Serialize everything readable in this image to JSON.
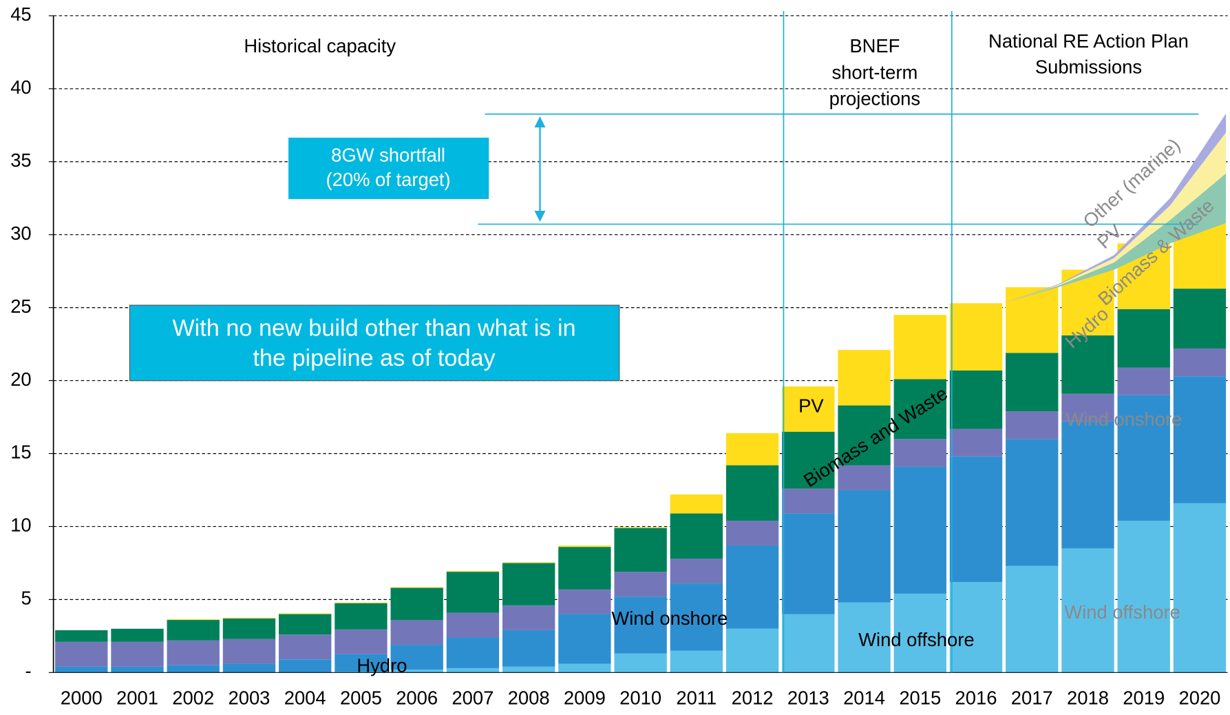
{
  "chart_data": {
    "type": "bar",
    "stacked": true,
    "categories": [
      "2000",
      "2001",
      "2002",
      "2003",
      "2004",
      "2005",
      "2006",
      "2007",
      "2008",
      "2009",
      "2010",
      "2011",
      "2012",
      "2013",
      "2014",
      "2015",
      "2016",
      "2017",
      "2018",
      "2019",
      "2020"
    ],
    "series": [
      {
        "name": "Wind offshore",
        "color": "#5bc0e8",
        "values": [
          0,
          0,
          0,
          0,
          0,
          0.05,
          0.2,
          0.3,
          0.4,
          0.6,
          1.3,
          1.5,
          3.0,
          4.0,
          4.8,
          5.4,
          6.2,
          7.3,
          8.5,
          10.4,
          11.6
        ]
      },
      {
        "name": "Wind onshore",
        "color": "#2e8fd0",
        "values": [
          0.4,
          0.4,
          0.5,
          0.6,
          0.9,
          1.2,
          1.7,
          2.1,
          2.5,
          3.4,
          3.9,
          4.6,
          5.7,
          6.9,
          7.7,
          8.7,
          8.6,
          8.7,
          8.7,
          8.6,
          8.7
        ]
      },
      {
        "name": "Hydro",
        "color": "#7377ba",
        "values": [
          1.7,
          1.7,
          1.7,
          1.7,
          1.7,
          1.7,
          1.7,
          1.7,
          1.7,
          1.7,
          1.7,
          1.7,
          1.7,
          1.7,
          1.7,
          1.9,
          1.9,
          1.9,
          1.9,
          1.9,
          1.9
        ]
      },
      {
        "name": "Biomass and Waste",
        "color": "#00805a",
        "values": [
          0.8,
          0.9,
          1.4,
          1.4,
          1.4,
          1.8,
          2.2,
          2.8,
          2.9,
          2.9,
          3.0,
          3.1,
          3.8,
          3.9,
          4.1,
          4.1,
          4.0,
          4.0,
          4.0,
          4.0,
          4.1
        ]
      },
      {
        "name": "PV",
        "color": "#ffdd1a",
        "values": [
          0,
          0,
          0.05,
          0.05,
          0.05,
          0.05,
          0.05,
          0.05,
          0.05,
          0.1,
          0.05,
          1.3,
          2.2,
          3.1,
          3.8,
          4.4,
          4.6,
          4.5,
          4.5,
          4.5,
          4.5
        ]
      }
    ],
    "projection": {
      "series": [
        {
          "name": "Biomass & Waste",
          "color": "#8cc9b0",
          "values": [
            null,
            null,
            null,
            null,
            null,
            null,
            null,
            null,
            null,
            null,
            null,
            null,
            null,
            null,
            null,
            null,
            0,
            0.1,
            0.5,
            1.6,
            3.4
          ]
        },
        {
          "name": "PV",
          "color": "#faf0a0",
          "values": [
            null,
            null,
            null,
            null,
            null,
            null,
            null,
            null,
            null,
            null,
            null,
            null,
            null,
            null,
            null,
            null,
            0,
            0.05,
            0.3,
            1.0,
            2.8
          ]
        },
        {
          "name": "Other (marine)",
          "color": "#a9aadf",
          "values": [
            null,
            null,
            null,
            null,
            null,
            null,
            null,
            null,
            null,
            null,
            null,
            null,
            null,
            null,
            null,
            null,
            0,
            0.05,
            0.2,
            0.5,
            1.3
          ]
        }
      ]
    },
    "ylim": [
      0,
      45
    ],
    "yticks": [
      {
        "value": 0,
        "label": "-"
      },
      5,
      10,
      15,
      20,
      25,
      30,
      35,
      40,
      45
    ],
    "grid": true,
    "annotations": {
      "historical": "Historical capacity",
      "bnef": [
        "BNEF",
        "short-term",
        "projections"
      ],
      "nreap": [
        "National RE Action Plan",
        "Submissions"
      ],
      "shortfall": [
        "8GW shortfall",
        "(20% of target)"
      ],
      "pipeline": [
        "With no new build other than what is in",
        "the pipeline as of today"
      ]
    }
  }
}
